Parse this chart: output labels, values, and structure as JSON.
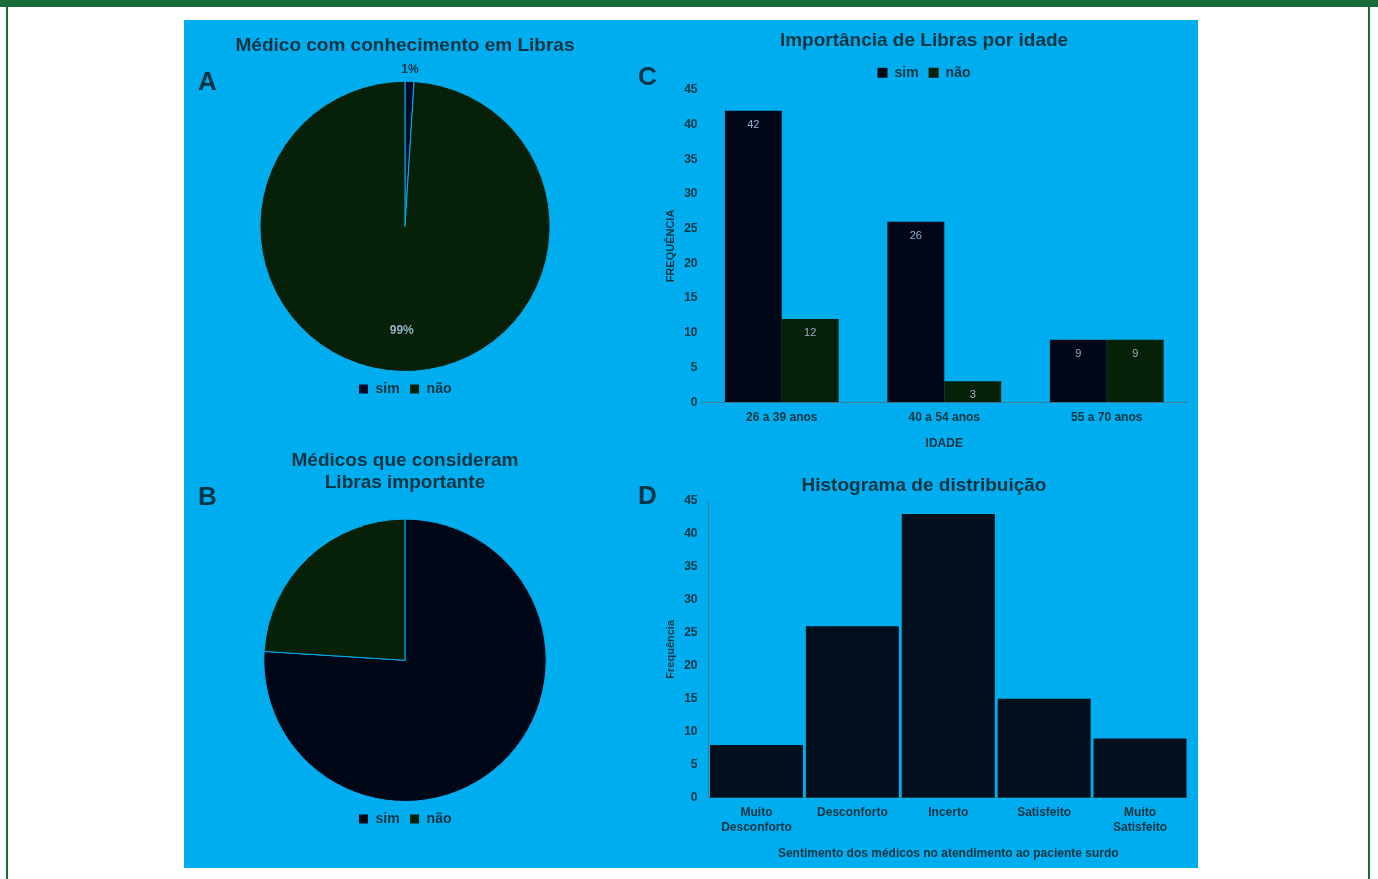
{
  "chart_data": [
    {
      "type": "pie",
      "title": "Médico com conhecimento em Libras",
      "annotations": [
        "A"
      ],
      "categories": [
        "sim",
        "não"
      ],
      "values": [
        1,
        99
      ],
      "colors": [
        "#000a2a",
        "#072008"
      ],
      "value_labels": [
        "1%",
        "99%"
      ],
      "legend": "bottom"
    },
    {
      "type": "pie",
      "title": "Médicos que consideram Libras importante",
      "annotations": [
        "B"
      ],
      "categories": [
        "sim",
        "não"
      ],
      "values": [
        76,
        24
      ],
      "colors": [
        "#000818",
        "#072008"
      ],
      "legend": "bottom"
    },
    {
      "type": "bar",
      "title": "Importância de Libras por idade",
      "annotations": [
        "C"
      ],
      "xlabel": "IDADE",
      "ylabel": "FREQUÊNCIA",
      "categories": [
        "26 a 39 anos",
        "40 a 54 anos",
        "55 a 70 anos"
      ],
      "series": [
        {
          "name": "sim",
          "color": "#000818",
          "values": [
            42,
            26,
            9
          ]
        },
        {
          "name": "não",
          "color": "#072008",
          "values": [
            12,
            3,
            9
          ]
        }
      ],
      "ylim": [
        0,
        45
      ],
      "yticks": [
        0,
        5,
        10,
        15,
        20,
        25,
        30,
        35,
        40,
        45
      ],
      "data_labels": true,
      "legend": "top",
      "grid": false
    },
    {
      "type": "bar",
      "title": "Histograma de distribuição",
      "annotations": [
        "D"
      ],
      "xlabel": "Sentimento dos médicos no atendimento ao paciente surdo",
      "ylabel": "Frequência",
      "categories": [
        "Muito Desconforto",
        "Desconforto",
        "Incerto",
        "Satisfeito",
        "Muito Satisfeito"
      ],
      "values": [
        8,
        26,
        43,
        15,
        9
      ],
      "color": "#020f1c",
      "ylim": [
        0,
        45
      ],
      "yticks": [
        0,
        5,
        10,
        15,
        20,
        25,
        30,
        35,
        40,
        45
      ],
      "grid": false
    }
  ]
}
